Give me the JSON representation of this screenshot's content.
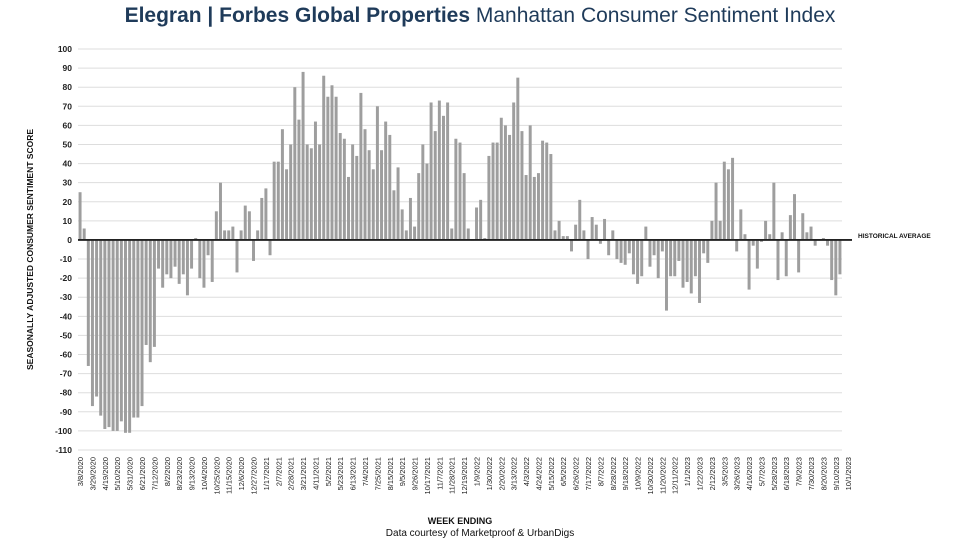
{
  "title": {
    "brand": "Elegran | Forbes Global Properties",
    "subtitle": "Manhattan Consumer Sentiment Index"
  },
  "credit": "Data courtesy of Marketproof & UrbanDigs",
  "colors": {
    "bar": "#9e9e9e",
    "axis": "#222222",
    "grid": "#dddddd",
    "title": "#1f3b5a"
  },
  "chart_data": {
    "type": "bar",
    "xlabel": "WEEK ENDING",
    "ylabel": "SEASONALLY ADJUSTED CONSUMER SENTIMENT SCORE",
    "ylim": [
      -110,
      100
    ],
    "yticks": [
      100,
      90,
      80,
      70,
      60,
      50,
      40,
      30,
      20,
      10,
      0,
      -10,
      -20,
      -30,
      -40,
      -50,
      -60,
      -70,
      -80,
      -90,
      -100,
      -110
    ],
    "grid": true,
    "reference_line": {
      "label": "HISTORICAL AVERAGE",
      "value": 0
    },
    "x_start": "3/8/2020",
    "x_tick_labels": [
      "3/8/2020",
      "3/29/2020",
      "4/19/2020",
      "5/10/2020",
      "5/31/2020",
      "6/21/2020",
      "7/12/2020",
      "8/2/2020",
      "8/23/2020",
      "9/13/2020",
      "10/4/2020",
      "10/25/2020",
      "11/15/2020",
      "12/6/2020",
      "12/27/2020",
      "1/17/2021",
      "2/7/2021",
      "2/28/2021",
      "3/21/2021",
      "4/11/2021",
      "5/2/2021",
      "5/23/2021",
      "6/13/2021",
      "7/4/2021",
      "7/25/2021",
      "8/15/2021",
      "9/5/2021",
      "9/26/2021",
      "10/17/2021",
      "11/7/2021",
      "11/28/2021",
      "12/19/2021",
      "1/9/2022",
      "1/30/2022",
      "2/20/2022",
      "3/13/2022",
      "4/3/2022",
      "4/24/2022",
      "5/15/2022",
      "6/5/2022",
      "6/26/2022",
      "7/17/2022",
      "8/7/2022",
      "8/28/2022",
      "9/18/2022",
      "10/9/2022",
      "10/30/2022",
      "11/20/2022",
      "12/11/2022",
      "1/1/2023",
      "1/22/2023",
      "2/12/2023",
      "3/5/2023",
      "3/26/2023",
      "4/16/2023",
      "5/7/2023",
      "5/28/2023",
      "6/18/2023",
      "7/9/2023",
      "7/30/2023",
      "8/20/2023",
      "9/10/2023",
      "10/1/2023"
    ],
    "values": [
      25,
      6,
      -66,
      -87,
      -82,
      -92,
      -99,
      -98,
      -100,
      -100,
      -95,
      -101,
      -101,
      -93,
      -93,
      -87,
      -55,
      -64,
      -56,
      -15,
      -25,
      -18,
      -20,
      -14,
      -23,
      -18,
      -29,
      -15,
      1,
      -20,
      -25,
      -8,
      -22,
      15,
      30,
      5,
      5,
      7,
      -17,
      5,
      18,
      15,
      -11,
      5,
      22,
      27,
      -8,
      41,
      41,
      58,
      37,
      50,
      80,
      63,
      88,
      50,
      48,
      62,
      50,
      86,
      75,
      81,
      75,
      56,
      53,
      33,
      50,
      44,
      77,
      58,
      47,
      37,
      70,
      47,
      62,
      55,
      26,
      38,
      16,
      5,
      22,
      7,
      35,
      50,
      40,
      72,
      57,
      73,
      65,
      72,
      6,
      53,
      51,
      35,
      6,
      0,
      17,
      21,
      1,
      44,
      51,
      51,
      64,
      60,
      55,
      72,
      85,
      57,
      34,
      60,
      33,
      35,
      52,
      51,
      45,
      5,
      10,
      2,
      2,
      -6,
      8,
      21,
      5,
      -10,
      12,
      8,
      -2,
      11,
      -8,
      5,
      -10,
      -12,
      -13,
      -7,
      -18,
      -23,
      -19,
      7,
      -14,
      -8,
      -20,
      -6,
      -37,
      -19,
      -19,
      -11,
      -25,
      -22,
      -28,
      -19,
      -33,
      -7,
      -12,
      10,
      30,
      10,
      41,
      37,
      43,
      -6,
      16,
      3,
      -26,
      -3,
      -15,
      -1,
      10,
      3,
      30,
      -21,
      4,
      -19,
      13,
      24,
      -17,
      14,
      4,
      7,
      -3,
      0,
      1,
      -3,
      -21,
      -29,
      -18
    ]
  }
}
